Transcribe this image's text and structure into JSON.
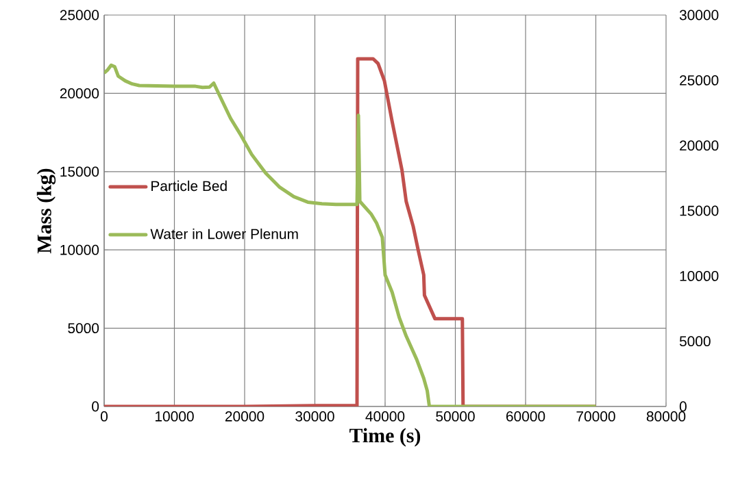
{
  "chart_data": {
    "type": "line",
    "xlabel": "Time (s)",
    "ylabel": "Mass (kg)",
    "xlim": [
      0,
      80000
    ],
    "xticks": [
      0,
      10000,
      20000,
      30000,
      40000,
      50000,
      60000,
      70000,
      80000
    ],
    "ylim": [
      0,
      25000
    ],
    "yticks": [
      0,
      5000,
      10000,
      15000,
      20000,
      25000
    ],
    "y2lim": [
      0,
      30000
    ],
    "y2ticks": [
      0,
      5000,
      10000,
      15000,
      20000,
      25000,
      30000
    ],
    "grid": true,
    "legend": "left",
    "marker": "none",
    "line_style": "solid",
    "series": [
      {
        "name": "Particle Bed",
        "color": "#c0504d",
        "x": [
          0,
          20000,
          30000,
          36000,
          36100,
          38300,
          39000,
          39900,
          41000,
          42400,
          43000,
          44000,
          44750,
          45500,
          45600,
          47100,
          51000,
          51100,
          70000
        ],
        "values": [
          0,
          0,
          50,
          50,
          22200,
          22200,
          21900,
          20800,
          18200,
          15100,
          13100,
          11500,
          9900,
          8400,
          7100,
          5600,
          5600,
          0,
          0
        ]
      },
      {
        "name": "Water in Lower Plenum",
        "color": "#9bbb59",
        "x": [
          0,
          500,
          1000,
          1500,
          2000,
          3000,
          4000,
          5000,
          10000,
          13000,
          14000,
          15000,
          15600,
          16500,
          18000,
          19500,
          21000,
          23000,
          25000,
          27000,
          29000,
          31000,
          33000,
          36000,
          36200,
          36400,
          38000,
          38800,
          39600,
          40000,
          41000,
          42000,
          43000,
          44500,
          45500,
          46000,
          46300,
          70000
        ],
        "values": [
          21300,
          21500,
          21800,
          21700,
          21100,
          20800,
          20600,
          20500,
          20450,
          20450,
          20380,
          20400,
          20650,
          19800,
          18400,
          17300,
          16100,
          14900,
          14000,
          13400,
          13050,
          12950,
          12900,
          12900,
          18600,
          13100,
          12300,
          11700,
          10800,
          8400,
          7300,
          5700,
          4500,
          3000,
          1800,
          1000,
          0,
          0
        ]
      }
    ]
  }
}
